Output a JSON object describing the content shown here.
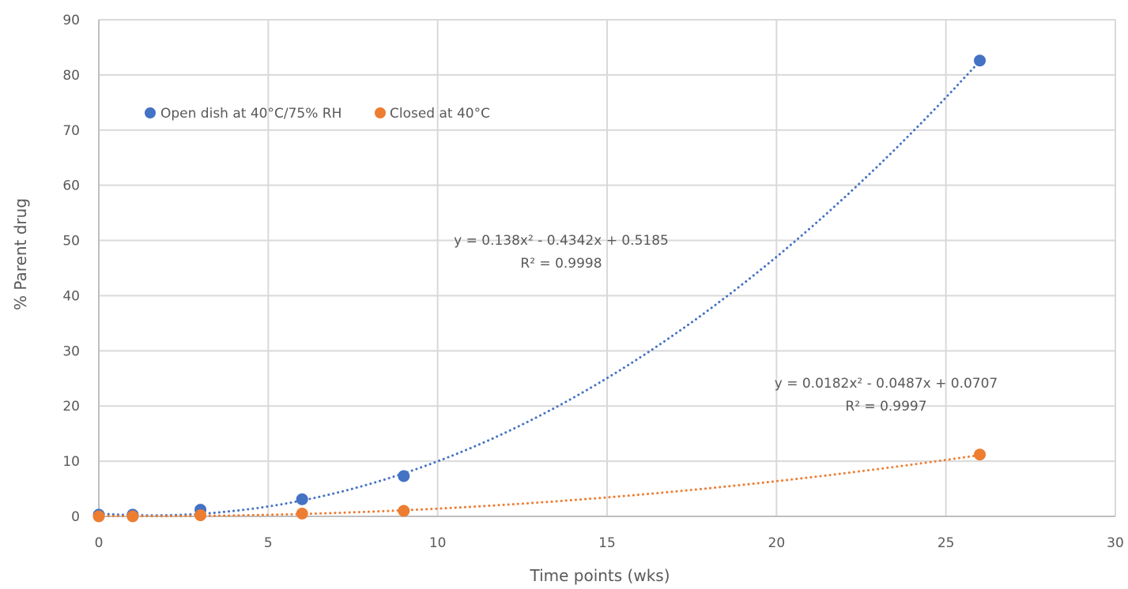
{
  "chart_data": {
    "type": "scatter",
    "title": "",
    "xlabel": "Time points (wks)",
    "ylabel": "% Parent drug",
    "xlim": [
      0,
      30
    ],
    "ylim": [
      0,
      90
    ],
    "xticks": [
      "0",
      "5",
      "10",
      "15",
      "20",
      "25",
      "30"
    ],
    "yticks": [
      "0",
      "10",
      "20",
      "30",
      "40",
      "50",
      "60",
      "70",
      "80",
      "90"
    ],
    "grid": true,
    "legend": "top-left",
    "series": [
      {
        "name": "Open dish at 40°C/75% RH",
        "color": "#4472C4",
        "x": [
          0,
          1,
          3,
          6,
          9,
          26
        ],
        "y": [
          0.3,
          0.3,
          1.2,
          3.1,
          7.3,
          82.6
        ],
        "trendline": {
          "type": "polynomial",
          "coefficients": [
            0.138,
            -0.4342,
            0.5185
          ],
          "equation": "y = 0.138x² - 0.4342x + 0.5185",
          "r2": "R² = 0.9998"
        }
      },
      {
        "name": "Closed at 40°C",
        "color": "#ED7D31",
        "x": [
          0,
          1,
          3,
          6,
          9,
          26
        ],
        "y": [
          0.0,
          0.0,
          0.2,
          0.5,
          1.0,
          11.2
        ],
        "trendline": {
          "type": "polynomial",
          "coefficients": [
            0.0182,
            -0.0487,
            0.0707
          ],
          "equation": "y = 0.0182x² - 0.0487x + 0.0707",
          "r2": "R² = 0.9997"
        }
      }
    ]
  }
}
